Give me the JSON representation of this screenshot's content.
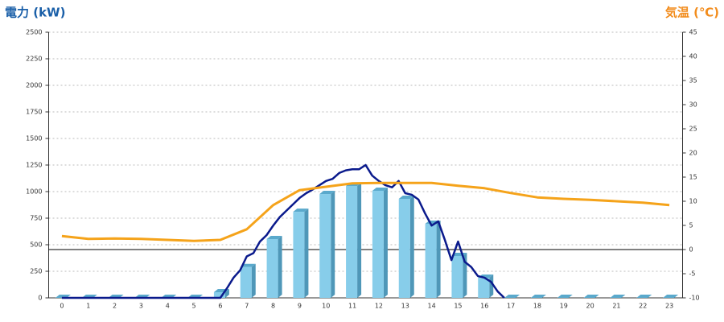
{
  "chart_data": {
    "type": "bar-line-combo",
    "title_left": "電力 (kW)",
    "title_right": "気温 (℃)",
    "title_left_color": "#1a5fa8",
    "title_right_color": "#f28c1c",
    "categories": [
      "0",
      "1",
      "2",
      "3",
      "4",
      "5",
      "6",
      "7",
      "8",
      "9",
      "10",
      "11",
      "12",
      "13",
      "14",
      "15",
      "16",
      "17",
      "18",
      "19",
      "20",
      "21",
      "22",
      "23"
    ],
    "series": [
      {
        "kind": "bar",
        "color": "#87cdea",
        "values": [
          0,
          0,
          0,
          0,
          0,
          0,
          53,
          290,
          553,
          810,
          977,
          1053,
          1008,
          932,
          697,
          394,
          189,
          0,
          0,
          0,
          0,
          0,
          0,
          0
        ]
      },
      {
        "kind": "line",
        "color": "#0a1a8c",
        "x": [
          0,
          5.75,
          6,
          6.25,
          6.5,
          6.75,
          7,
          7.25,
          7.5,
          7.75,
          8,
          8.25,
          8.5,
          8.75,
          9,
          9.25,
          9.5,
          9.75,
          10,
          10.25,
          10.5,
          10.75,
          11,
          11.25,
          11.5,
          11.75,
          12,
          12.25,
          12.5,
          12.75,
          13,
          13.25,
          13.5,
          13.75,
          14,
          14.25,
          14.5,
          14.75,
          15,
          15.25,
          15.5,
          15.75,
          16,
          16.25,
          16.5,
          16.75
        ],
        "values": [
          0,
          0,
          0,
          90,
          190,
          260,
          390,
          420,
          530,
          590,
          680,
          760,
          820,
          880,
          940,
          985,
          1020,
          1060,
          1100,
          1120,
          1175,
          1200,
          1210,
          1210,
          1250,
          1150,
          1100,
          1060,
          1040,
          1100,
          985,
          970,
          925,
          795,
          680,
          720,
          545,
          355,
          530,
          340,
          290,
          205,
          190,
          150,
          60,
          0
        ]
      },
      {
        "kind": "line",
        "axis": "y2",
        "color": "#f5a31a",
        "values": [
          2.8,
          2.2,
          2.3,
          2.2,
          2.0,
          1.8,
          2.0,
          4.2,
          9.2,
          12.3,
          13.0,
          13.7,
          13.8,
          13.8,
          13.8,
          13.2,
          12.7,
          11.7,
          10.8,
          10.5,
          10.3,
          10.0,
          9.7,
          9.2
        ]
      }
    ],
    "ylim": [
      0,
      2500
    ],
    "yticks": [
      0,
      250,
      500,
      750,
      1000,
      1250,
      1500,
      1750,
      2000,
      2250,
      2500
    ],
    "y2lim": [
      -10,
      45
    ],
    "y2ticks": [
      -10,
      -5,
      0,
      5,
      10,
      15,
      20,
      25,
      30,
      35,
      40,
      45
    ],
    "y2_refline": 0,
    "grid": true
  }
}
